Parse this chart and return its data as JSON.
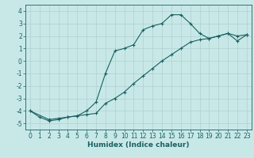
{
  "xlabel": "Humidex (Indice chaleur)",
  "background_color": "#c8e8e8",
  "grid_color": "#b0d0d0",
  "line_color": "#1a6060",
  "xlim": [
    -0.5,
    23.5
  ],
  "ylim": [
    -5.5,
    4.5
  ],
  "xticks": [
    0,
    1,
    2,
    3,
    4,
    5,
    6,
    7,
    8,
    9,
    10,
    11,
    12,
    13,
    14,
    15,
    16,
    17,
    18,
    19,
    20,
    21,
    22,
    23
  ],
  "yticks": [
    -5,
    -4,
    -3,
    -2,
    -1,
    0,
    1,
    2,
    3,
    4
  ],
  "line1_x": [
    0,
    1,
    2,
    3,
    4,
    5,
    6,
    7,
    8,
    9,
    10,
    11,
    12,
    13,
    14,
    15,
    16,
    17,
    18,
    19,
    20,
    21,
    22,
    23
  ],
  "line1_y": [
    -4.0,
    -4.5,
    -4.8,
    -4.7,
    -4.5,
    -4.4,
    -4.0,
    -3.3,
    -1.0,
    0.8,
    1.0,
    1.3,
    2.5,
    2.8,
    3.0,
    3.7,
    3.7,
    3.0,
    2.2,
    1.8,
    2.0,
    2.2,
    1.6,
    2.1
  ],
  "line2_x": [
    0,
    2,
    3,
    4,
    5,
    6,
    7,
    8,
    9,
    10,
    11,
    12,
    13,
    14,
    15,
    16,
    17,
    18,
    19,
    20,
    21,
    22,
    23
  ],
  "line2_y": [
    -4.0,
    -4.7,
    -4.6,
    -4.5,
    -4.4,
    -4.3,
    -4.2,
    -3.4,
    -3.0,
    -2.5,
    -1.8,
    -1.2,
    -0.6,
    0.0,
    0.5,
    1.0,
    1.5,
    1.7,
    1.8,
    2.0,
    2.2,
    2.0,
    2.1
  ],
  "tick_fontsize": 5.5,
  "xlabel_fontsize": 6.5
}
